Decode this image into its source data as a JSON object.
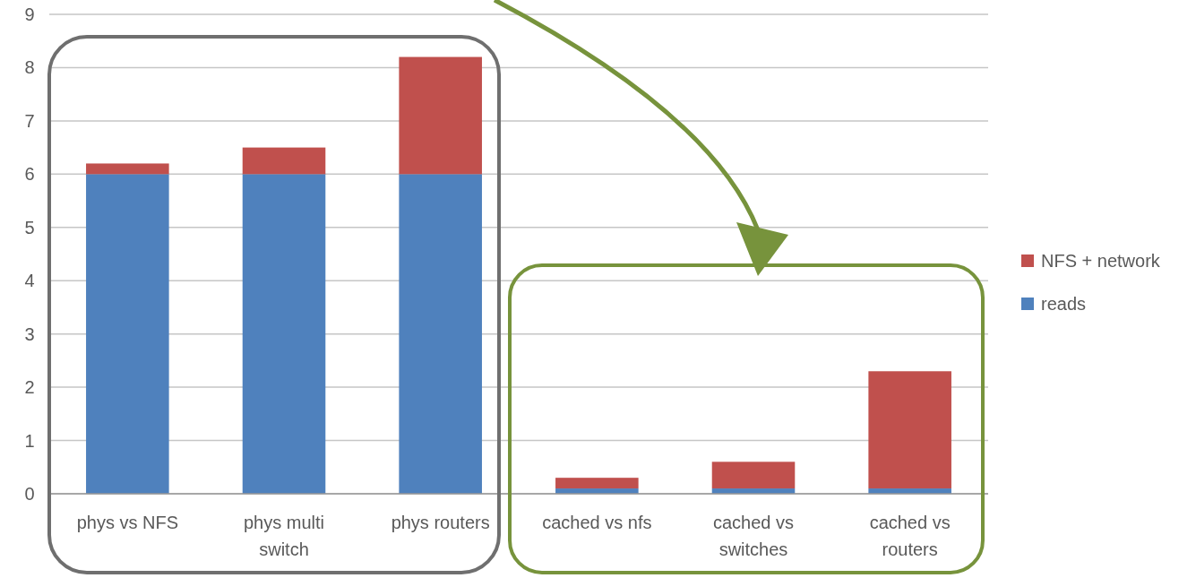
{
  "chart_data": {
    "type": "bar",
    "stacked": true,
    "categories": [
      "phys vs NFS",
      "phys multi switch",
      "phys routers",
      "cached vs nfs",
      "cached vs switches",
      "cached vs routers"
    ],
    "series": [
      {
        "name": "reads",
        "color": "#4f81bd",
        "values": [
          6.0,
          6.0,
          6.0,
          0.1,
          0.1,
          0.1
        ]
      },
      {
        "name": "NFS + network",
        "color": "#c0504d",
        "values": [
          0.2,
          0.5,
          2.2,
          0.2,
          0.5,
          2.2
        ]
      }
    ],
    "ylim": [
      0,
      9
    ],
    "yticks": [
      0,
      1,
      2,
      3,
      4,
      5,
      6,
      7,
      8,
      9
    ],
    "grid": "y",
    "legend": "right"
  }
}
